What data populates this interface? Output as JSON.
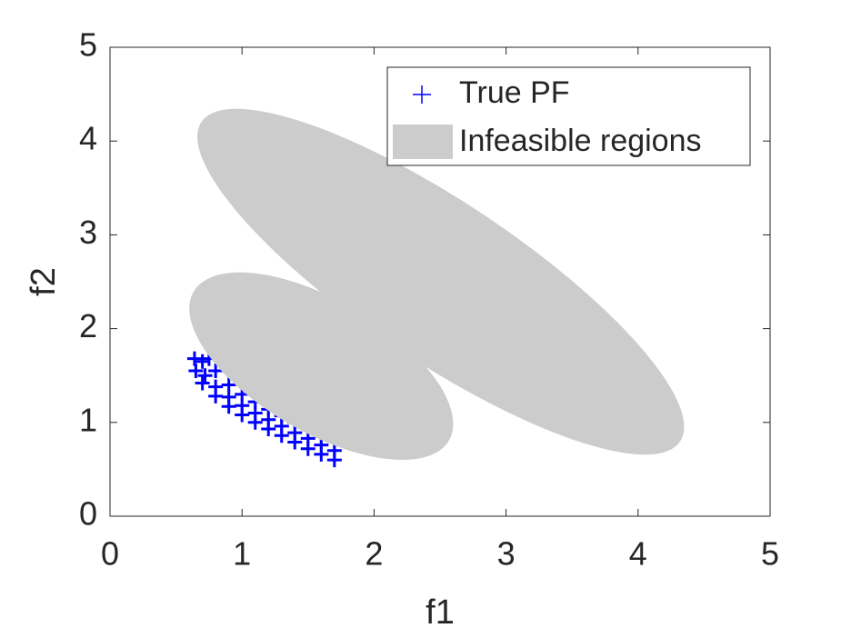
{
  "chart_data": {
    "type": "scatter",
    "xlabel": "f1",
    "ylabel": "f2",
    "xlim": [
      0,
      5
    ],
    "ylim": [
      0,
      5
    ],
    "xticks": [
      0,
      1,
      2,
      3,
      4,
      5
    ],
    "yticks": [
      0,
      1,
      2,
      3,
      4,
      5
    ],
    "grid": false,
    "legend": "upper right",
    "series": [
      {
        "name": "True PF",
        "color": "#0000ff",
        "x": [
          0.64,
          0.65,
          0.7,
          0.8,
          0.9,
          1.0,
          1.1,
          1.2,
          1.3,
          1.4,
          1.5,
          1.6,
          1.7,
          0.7,
          0.72,
          0.8,
          0.9,
          1.0,
          1.1,
          1.2,
          1.3,
          1.4,
          1.5,
          1.6,
          1.7,
          0.75,
          0.8,
          0.9,
          1.0,
          1.1,
          1.2,
          1.3,
          1.4,
          1.5,
          1.6,
          1.7
        ],
        "y": [
          1.68,
          1.55,
          1.42,
          1.28,
          1.17,
          1.08,
          1.0,
          0.93,
          0.86,
          0.79,
          0.72,
          0.66,
          0.6,
          1.65,
          1.5,
          1.38,
          1.27,
          1.18,
          1.1,
          1.03,
          0.96,
          0.89,
          0.83,
          0.76,
          0.7,
          1.68,
          1.55,
          1.4,
          1.3,
          1.22,
          1.14,
          1.07,
          1.0,
          0.93,
          0.86,
          0.8
        ]
      }
    ],
    "regions": {
      "name": "Infeasible regions",
      "color": "#cccccc",
      "ellipses": [
        {
          "cx": 1.6,
          "cy": 1.6,
          "rx": 1.27,
          "ry": 0.62,
          "angle": -45
        },
        {
          "cx": 2.505,
          "cy": 2.5,
          "rx": 2.5,
          "ry": 0.74,
          "angle": -45
        }
      ]
    }
  }
}
